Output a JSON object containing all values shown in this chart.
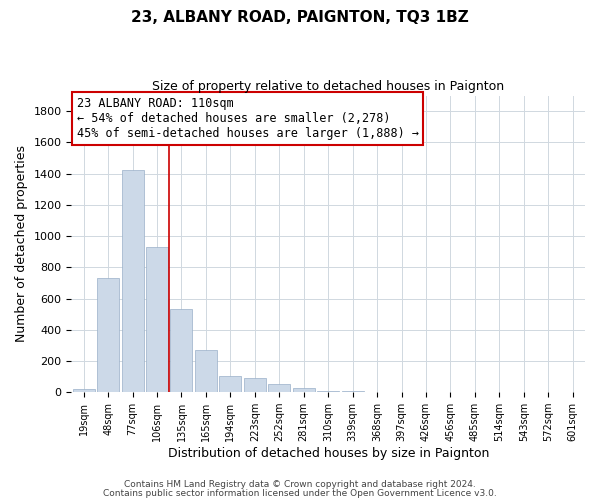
{
  "title": "23, ALBANY ROAD, PAIGNTON, TQ3 1BZ",
  "subtitle": "Size of property relative to detached houses in Paignton",
  "xlabel": "Distribution of detached houses by size in Paignton",
  "ylabel": "Number of detached properties",
  "bar_labels": [
    "19sqm",
    "48sqm",
    "77sqm",
    "106sqm",
    "135sqm",
    "165sqm",
    "194sqm",
    "223sqm",
    "252sqm",
    "281sqm",
    "310sqm",
    "339sqm",
    "368sqm",
    "397sqm",
    "426sqm",
    "456sqm",
    "485sqm",
    "514sqm",
    "543sqm",
    "572sqm",
    "601sqm"
  ],
  "bar_values": [
    20,
    733,
    1425,
    933,
    530,
    270,
    103,
    92,
    50,
    25,
    10,
    5,
    2,
    1,
    0,
    0,
    0,
    0,
    0,
    0,
    0
  ],
  "bar_color": "#ccd9e8",
  "bar_edge_color": "#9ab0c8",
  "annotation_box_color": "#ffffff",
  "annotation_border_color": "#cc0000",
  "annotation_title": "23 ALBANY ROAD: 110sqm",
  "annotation_line1": "← 54% of detached houses are smaller (2,278)",
  "annotation_line2": "45% of semi-detached houses are larger (1,888) →",
  "annotation_fontsize": 8.5,
  "vline_x": 3.48,
  "vline_color": "#cc0000",
  "ylim": [
    0,
    1900
  ],
  "yticks": [
    0,
    200,
    400,
    600,
    800,
    1000,
    1200,
    1400,
    1600,
    1800
  ],
  "footer1": "Contains HM Land Registry data © Crown copyright and database right 2024.",
  "footer2": "Contains public sector information licensed under the Open Government Licence v3.0.",
  "background_color": "#ffffff",
  "grid_color": "#d0d8e0"
}
